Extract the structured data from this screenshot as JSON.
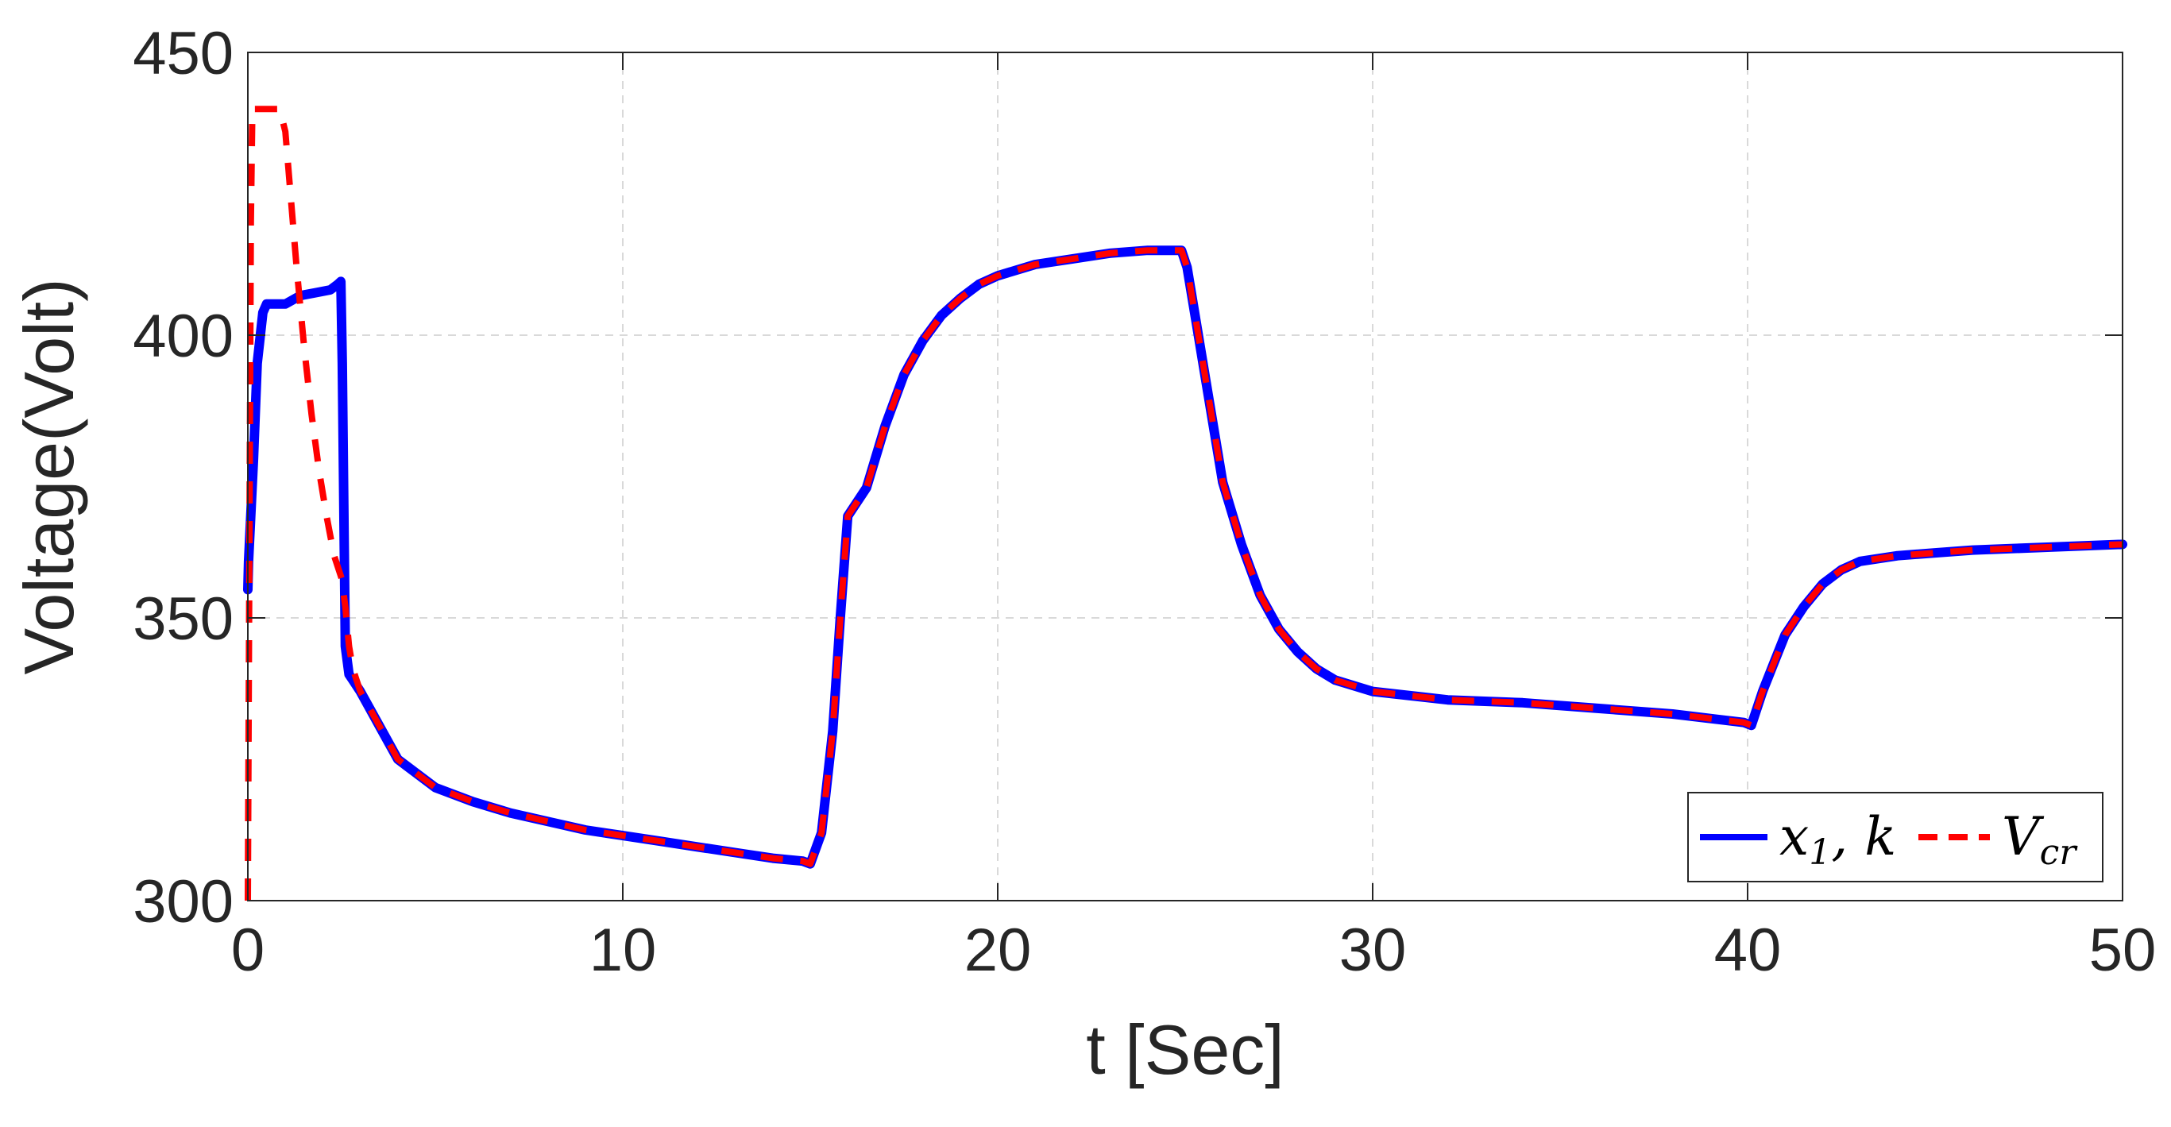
{
  "chart_data": {
    "type": "line",
    "title": "",
    "xlabel": "t [Sec]",
    "ylabel": "Voltage(Volt)",
    "xlim": [
      0,
      50
    ],
    "ylim": [
      300,
      450
    ],
    "xticks": [
      "0",
      "10",
      "20",
      "30",
      "40",
      "50"
    ],
    "yticks": [
      "300",
      "350",
      "400",
      "450"
    ],
    "grid": true,
    "legend_position": "bottom-right",
    "series": [
      {
        "name": "x1,k",
        "legend_main": "x",
        "legend_sub": "1",
        "legend_rest": ", k",
        "color": "#0000ff",
        "style": "solid",
        "x": [
          0,
          0.02,
          0.15,
          0.25,
          0.4,
          0.5,
          0.6,
          1.0,
          1.4,
          1.8,
          2.2,
          2.4,
          2.48,
          2.52,
          2.56,
          2.6,
          2.7,
          2.8,
          3.0,
          3.5,
          4,
          5,
          6,
          7,
          8,
          9,
          10,
          11,
          12,
          13,
          14,
          14.8,
          15.0,
          15.3,
          15.6,
          15.8,
          16.0,
          16.5,
          17,
          17.5,
          18,
          18.5,
          19,
          19.5,
          20,
          21,
          22,
          23,
          24,
          24.9,
          25.05,
          25.3,
          25.6,
          26,
          26.5,
          27,
          27.5,
          28,
          28.5,
          29,
          30,
          32,
          34,
          36,
          38,
          39.9,
          40.1,
          40.4,
          40.7,
          41,
          41.5,
          42,
          42.5,
          43,
          44,
          45,
          46,
          48,
          50
        ],
        "y": [
          355,
          360,
          378,
          395,
          404,
          405.5,
          405.5,
          405.5,
          407,
          407.5,
          408,
          409,
          409.5,
          395,
          370,
          345,
          340,
          339,
          337,
          331,
          325,
          320,
          317.5,
          315.5,
          314,
          312.5,
          311.5,
          310.5,
          309.5,
          308.5,
          307.5,
          307,
          306.5,
          312,
          330,
          350,
          368,
          373,
          384,
          393,
          399,
          403.5,
          406.5,
          409,
          410.5,
          412.5,
          413.5,
          414.5,
          415,
          415,
          412,
          402,
          390,
          374,
          363,
          354,
          348,
          344,
          341,
          339,
          337,
          335.5,
          335,
          334,
          333,
          331.5,
          331,
          337,
          342,
          347,
          352,
          356,
          358.5,
          360,
          361,
          361.5,
          362,
          362.5,
          363
        ]
      },
      {
        "name": "Vcr",
        "legend_main": "V",
        "legend_sub": "cr",
        "legend_rest": "",
        "color": "#ff0000",
        "style": "dashed",
        "x": [
          0,
          0.04,
          0.08,
          0.12,
          0.2,
          0.4,
          0.7,
          0.85,
          1.0,
          1.1,
          1.3,
          1.5,
          1.7,
          1.9,
          2.1,
          2.3,
          2.5,
          2.6,
          2.7,
          2.8,
          3.0,
          3.5,
          4,
          5,
          6,
          7,
          8,
          9,
          10,
          11,
          12,
          13,
          14,
          14.8,
          15.0,
          15.3,
          15.6,
          15.8,
          16.0,
          16.5,
          17,
          17.5,
          18,
          18.5,
          19,
          19.5,
          20,
          21,
          22,
          23,
          24,
          24.9,
          25.05,
          25.3,
          25.6,
          26,
          26.5,
          27,
          27.5,
          28,
          28.5,
          29,
          30,
          32,
          34,
          36,
          38,
          39.9,
          40.1,
          40.4,
          40.7,
          41,
          41.5,
          42,
          42.5,
          43,
          44,
          45,
          46,
          48,
          50
        ],
        "y": [
          300,
          360,
          420,
          440,
          440,
          440,
          440,
          440,
          436,
          428,
          412,
          398,
          386,
          376,
          368,
          361,
          357,
          352,
          345,
          341,
          337,
          331,
          325,
          320,
          317.5,
          315.5,
          314,
          312.5,
          311.5,
          310.5,
          309.5,
          308.5,
          307.5,
          307,
          306.5,
          312,
          330,
          350,
          368,
          373,
          384,
          393,
          399,
          403.5,
          406.5,
          409,
          410.5,
          412.5,
          413.5,
          414.5,
          415,
          415,
          412,
          402,
          390,
          374,
          363,
          354,
          348,
          344,
          341,
          339,
          337,
          335.5,
          335,
          334,
          333,
          331.5,
          331,
          337,
          342,
          347,
          352,
          356,
          358.5,
          360,
          361,
          361.5,
          362,
          362.5,
          363
        ]
      }
    ]
  }
}
